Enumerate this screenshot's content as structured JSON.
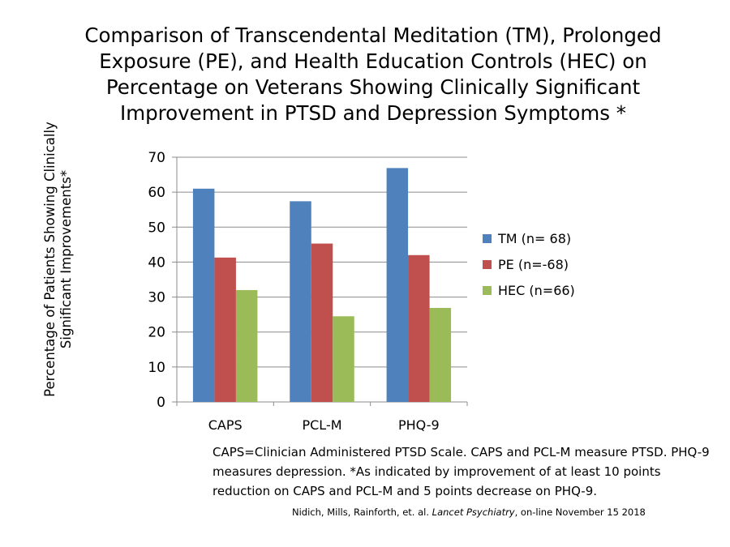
{
  "chart_data": {
    "type": "bar",
    "title": "Comparison of Transcendental Meditation (TM), Prolonged Exposure (PE), and Health Education Controls (HEC) on Percentage on Veterans Showing Clinically Significant Improvement in PTSD and Depression Symptoms *",
    "ylabel": "Percentage of Patients Showing Clinically Significant Improvements*",
    "xlabel": "",
    "categories": [
      "CAPS",
      "PCL-M",
      "PHQ-9"
    ],
    "ylim": [
      0,
      70
    ],
    "yticks": [
      "0",
      "10",
      "20",
      "30",
      "40",
      "50",
      "60",
      "70"
    ],
    "grid": true,
    "legend_position": "right",
    "series": [
      {
        "name": "TM (n= 68)",
        "color": "#4f81bd",
        "values": [
          61.0,
          57.4,
          66.9
        ]
      },
      {
        "name": "PE (n=-68)",
        "color": "#c0504d",
        "values": [
          41.3,
          45.3,
          42.0
        ]
      },
      {
        "name": "HEC (n=66)",
        "color": "#9bbb59",
        "values": [
          32.0,
          24.5,
          26.9
        ]
      }
    ]
  },
  "footnote": "CAPS=Clinician Administered PTSD Scale. CAPS and PCL-M measure PTSD. PHQ-9 measures depression. *As indicated by improvement of at least 10 points reduction on CAPS and PCL-M and 5 points decrease on PHQ-9.",
  "citation": {
    "authors": "Nidich, Mills, Rainforth, et. al. ",
    "journal": "Lancet Psychiatry",
    "rest": ", on-line  November 15 2018"
  }
}
